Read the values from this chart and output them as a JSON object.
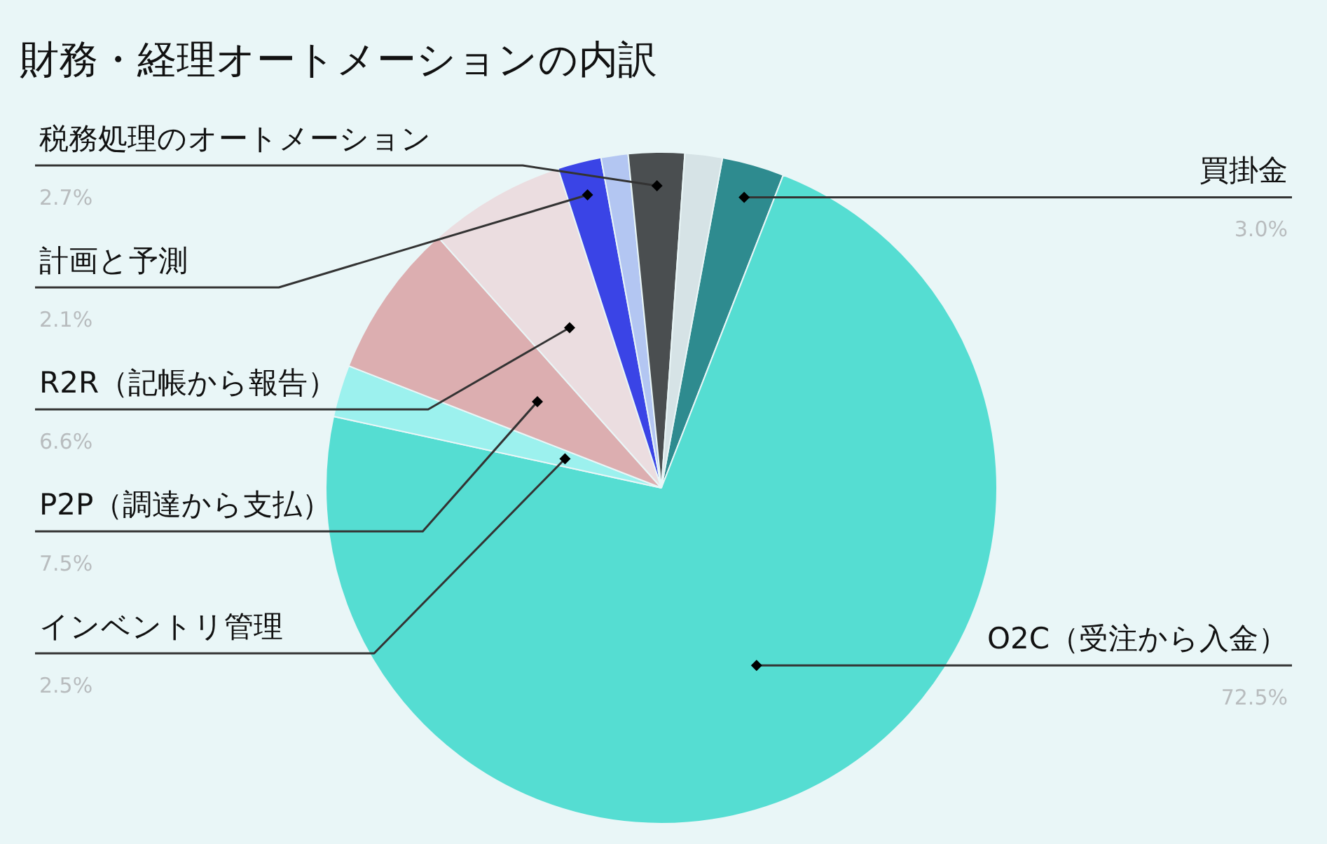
{
  "chart_data": {
    "type": "pie",
    "title": "財務・経理オートメーションの内訳",
    "categories": [
      "買掛金",
      "O2C（受注から入金）",
      "インベントリ管理",
      "P2P（調達から支払）",
      "R2R（記帳から報告）",
      "計画と予測",
      null,
      "税務処理のオートメーション",
      null
    ],
    "values": [
      3.0,
      72.5,
      2.5,
      7.5,
      6.6,
      2.1,
      1.3,
      2.7,
      1.8
    ],
    "value_labels": [
      "3.0%",
      "72.5%",
      "2.5%",
      "7.5%",
      "6.6%",
      "2.1%",
      null,
      "2.7%",
      null
    ],
    "colors": [
      "#2e8b8f",
      "#55ddd2",
      "#9cf1ee",
      "#dcaeb0",
      "#ebdde0",
      "#3a44e6",
      "#b3c6f2",
      "#4a4e50",
      "#d6e3e6"
    ],
    "legend": false
  }
}
